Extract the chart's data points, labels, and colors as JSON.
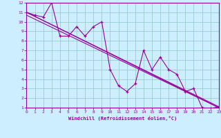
{
  "xlabel": "Windchill (Refroidissement éolien,°C)",
  "bg_color": "#cceeff",
  "line_color": "#990099",
  "grid_color": "#99cccc",
  "border_color": "#990099",
  "xmin": 0,
  "xmax": 23,
  "ymin": 1,
  "ymax": 12,
  "series1_x": [
    0,
    1,
    2,
    3,
    4,
    5,
    6,
    7,
    8,
    9,
    10,
    11,
    12,
    13,
    14,
    15,
    16,
    17,
    18,
    19,
    20,
    21,
    22,
    23
  ],
  "series1_y": [
    11.0,
    10.7,
    10.5,
    12.0,
    8.5,
    8.5,
    9.5,
    8.5,
    9.5,
    10.0,
    5.0,
    3.3,
    2.7,
    3.5,
    7.0,
    5.0,
    6.3,
    5.0,
    4.5,
    2.7,
    3.0,
    1.0,
    0.9,
    1.1
  ],
  "series2_x": [
    0,
    23
  ],
  "series2_y": [
    11.0,
    1.0
  ],
  "series3_x": [
    0,
    23
  ],
  "series3_y": [
    11.0,
    1.1
  ],
  "series4_x": [
    0,
    23
  ],
  "series4_y": [
    10.7,
    1.0
  ]
}
